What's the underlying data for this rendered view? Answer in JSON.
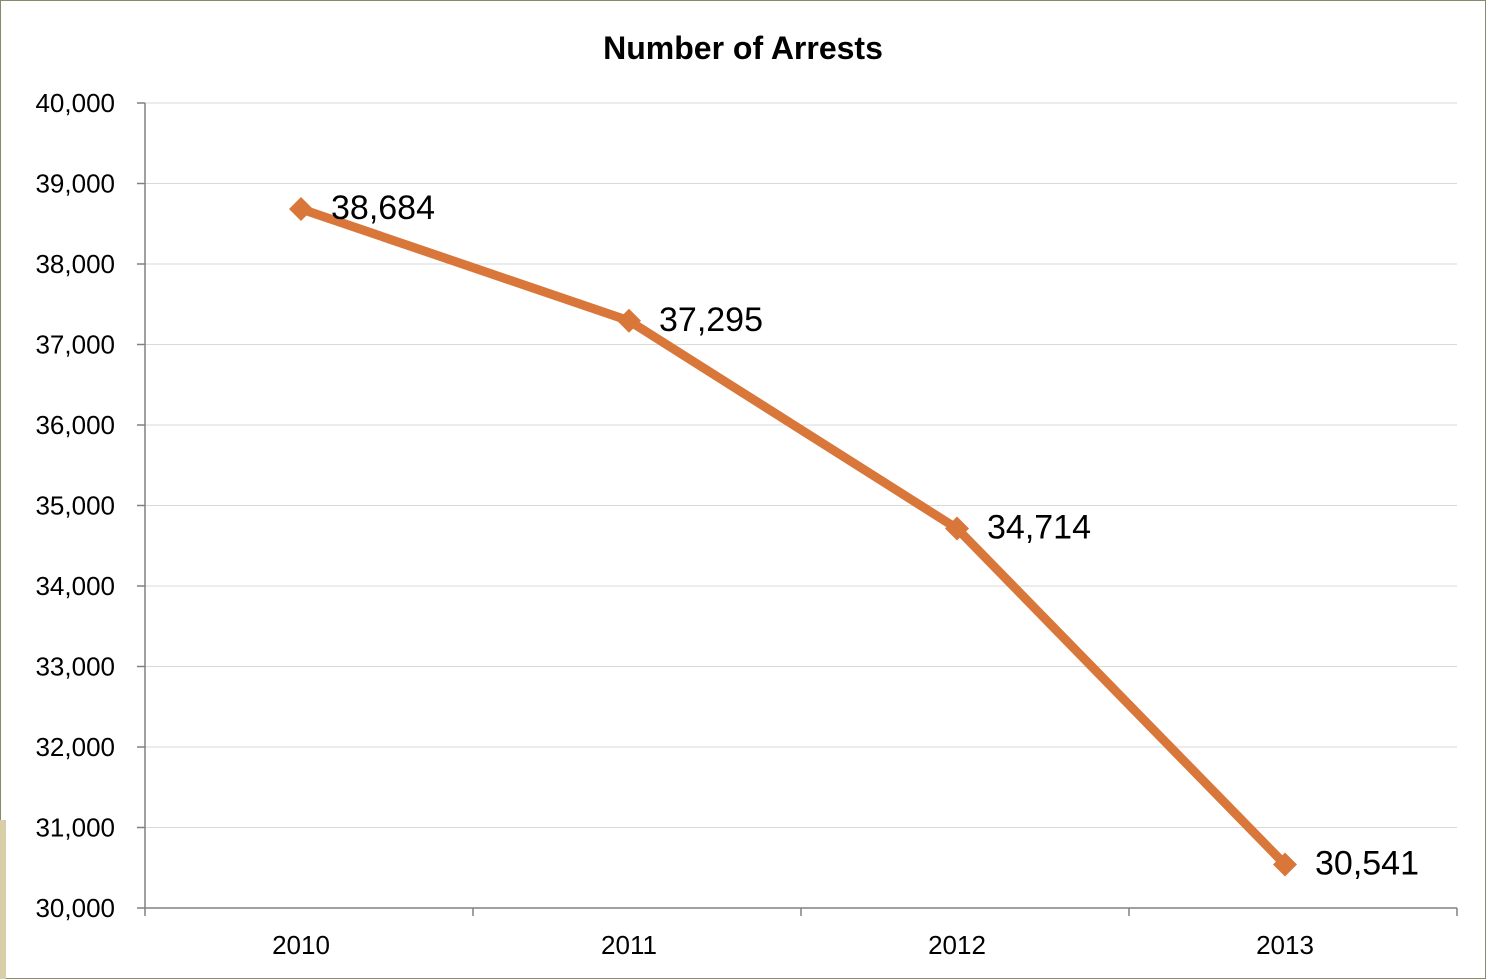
{
  "chart_data": {
    "type": "line",
    "title": "Number of Arrests",
    "xlabel": "",
    "ylabel": "",
    "categories": [
      "2010",
      "2011",
      "2012",
      "2013"
    ],
    "series": [
      {
        "values": [
          38684,
          37295,
          34714,
          30541
        ],
        "data_labels": [
          "38,684",
          "37,295",
          "34,714",
          "30,541"
        ],
        "color": "#d9773b",
        "marker": "diamond"
      }
    ],
    "ylim": [
      30000,
      40000
    ],
    "yticks": [
      30000,
      31000,
      32000,
      33000,
      34000,
      35000,
      36000,
      37000,
      38000,
      39000,
      40000
    ],
    "ytick_labels": [
      "30,000",
      "31,000",
      "32,000",
      "33,000",
      "34,000",
      "35,000",
      "36,000",
      "37,000",
      "38,000",
      "39,000",
      "40,000"
    ],
    "grid": true,
    "legend": "none"
  }
}
